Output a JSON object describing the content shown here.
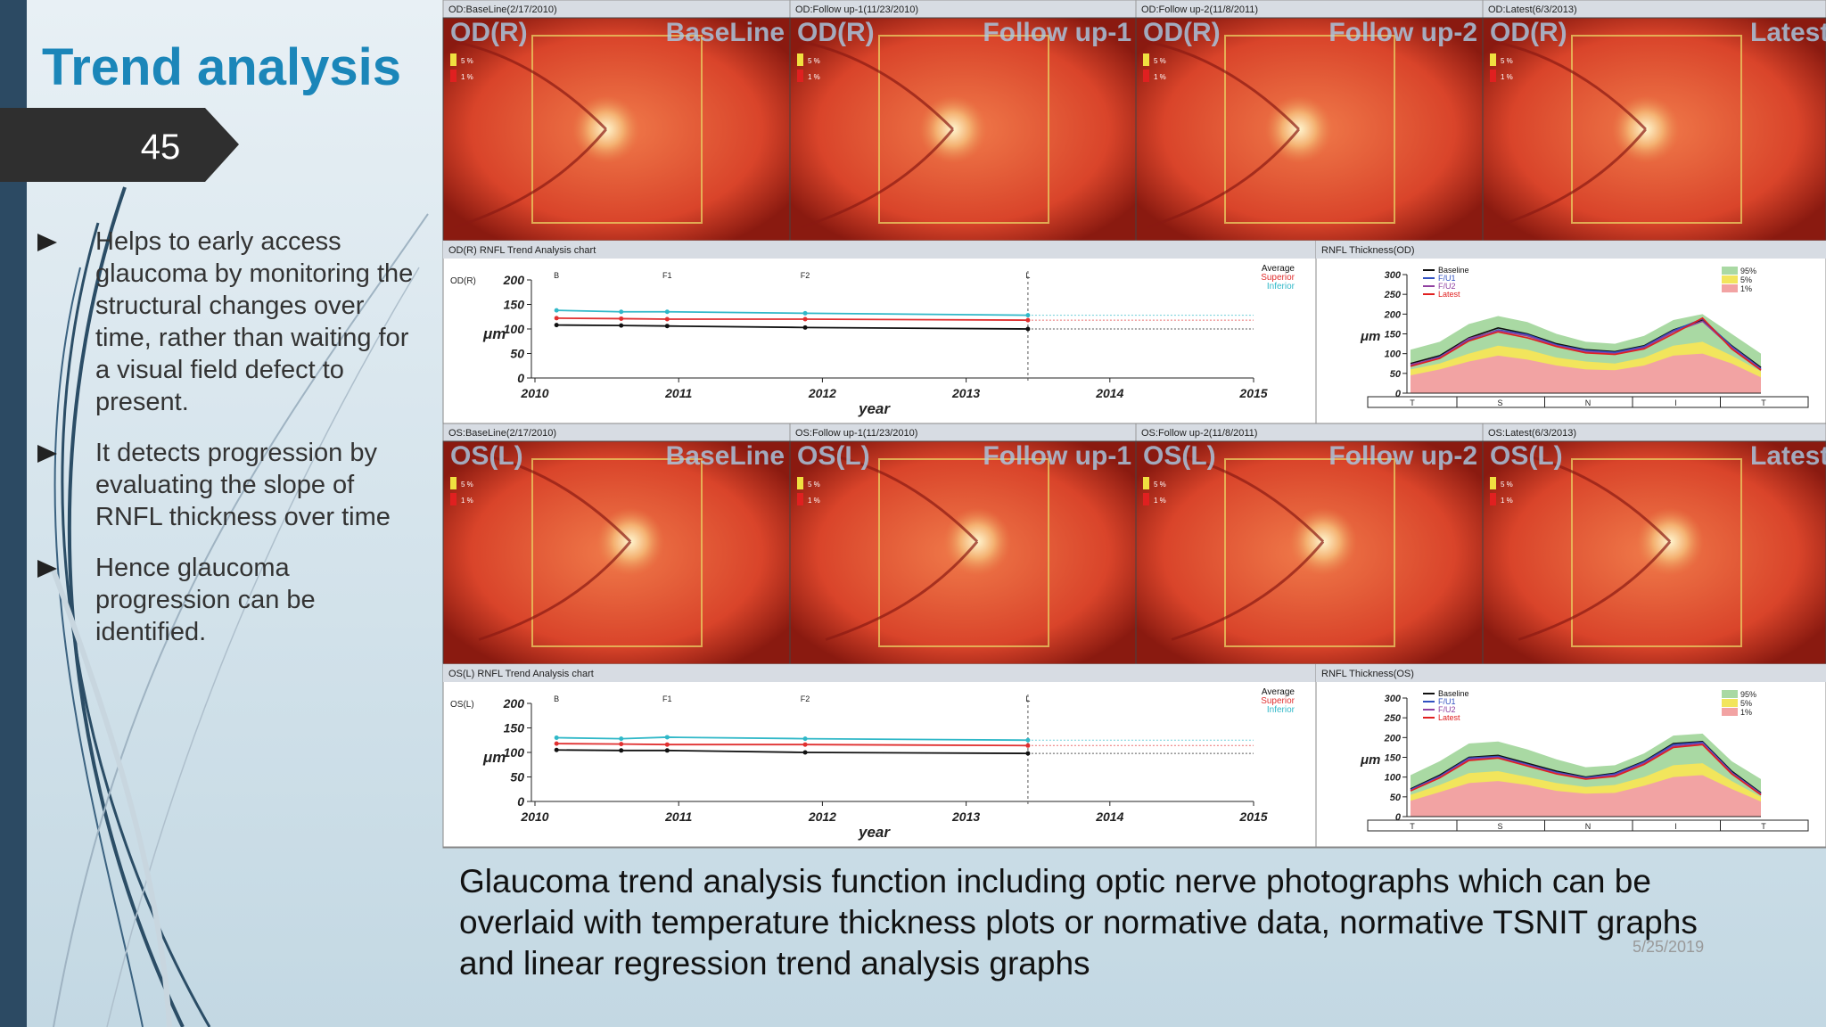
{
  "slide": {
    "title": "Trend analysis",
    "number": "45",
    "bullets": [
      [
        "Helps to early access",
        "glaucoma by monitoring  the",
        "structural changes over",
        "time, rather than waiting for",
        "a visual field defect to",
        "present."
      ],
      [
        "It detects progression by",
        "evaluating the slope of",
        "RNFL thickness over time"
      ],
      [
        "Hence glaucoma",
        "progression can be",
        "identified."
      ]
    ],
    "caption": [
      "Glaucoma trend analysis function including optic nerve photographs which can be",
      "overlaid with temperature thickness plots or normative data, normative TSNIT graphs",
      "and linear regression trend analysis graphs"
    ],
    "date": "5/25/2019"
  },
  "figure": {
    "photo_rows": [
      {
        "scale": [
          "5 %",
          "1 %"
        ],
        "panels": [
          {
            "header": "OD:BaseLine(2/17/2010)",
            "eye": "OD(R)",
            "stage": "BaseLine"
          },
          {
            "header": "OD:Follow up-1(11/23/2010)",
            "eye": "OD(R)",
            "stage": "Follow up-1"
          },
          {
            "header": "OD:Follow up-2(11/8/2011)",
            "eye": "OD(R)",
            "stage": "Follow up-2"
          },
          {
            "header": "OD:Latest(6/3/2013)",
            "eye": "OD(R)",
            "stage": "Latest"
          }
        ]
      },
      {
        "scale": [
          "5 %",
          "1 %"
        ],
        "panels": [
          {
            "header": "OS:BaseLine(2/17/2010)",
            "eye": "OS(L)",
            "stage": "BaseLine"
          },
          {
            "header": "OS:Follow up-1(11/23/2010)",
            "eye": "OS(L)",
            "stage": "Follow up-1"
          },
          {
            "header": "OS:Follow up-2(11/8/2011)",
            "eye": "OS(L)",
            "stage": "Follow up-2"
          },
          {
            "header": "OS:Latest(6/3/2013)",
            "eye": "OS(L)",
            "stage": "Latest"
          }
        ]
      }
    ],
    "trend_charts": [
      {
        "type": "line",
        "title": "OD(R) RNFL Trend Analysis chart",
        "eye": "OD(R)",
        "ylabel": "μm",
        "xlabel": "year",
        "xlim": [
          2010,
          2015
        ],
        "xticks": [
          2010,
          2011,
          2012,
          2013,
          2014,
          2015
        ],
        "ylim": [
          0,
          200
        ],
        "yticks": [
          0,
          50,
          100,
          150,
          200
        ],
        "markers": {
          "labels": [
            "B",
            "F1",
            "F2",
            "L"
          ],
          "x": [
            2010.15,
            2010.92,
            2011.88,
            2013.43
          ]
        },
        "x": [
          2010.15,
          2010.6,
          2010.92,
          2011.88,
          2013.43
        ],
        "series": [
          {
            "name": "Average",
            "color": "#111111",
            "values": [
              108,
              107,
              106,
              103,
              100
            ]
          },
          {
            "name": "Superior",
            "color": "#e03030",
            "values": [
              122,
              121,
              120,
              120,
              118
            ]
          },
          {
            "name": "Inferior",
            "color": "#30b8c8",
            "values": [
              138,
              135,
              135,
              132,
              128
            ]
          }
        ]
      },
      {
        "type": "line",
        "title": "OS(L) RNFL Trend Analysis chart",
        "eye": "OS(L)",
        "ylabel": "μm",
        "xlabel": "year",
        "xlim": [
          2010,
          2015
        ],
        "xticks": [
          2010,
          2011,
          2012,
          2013,
          2014,
          2015
        ],
        "ylim": [
          0,
          200
        ],
        "yticks": [
          0,
          50,
          100,
          150,
          200
        ],
        "markers": {
          "labels": [
            "B",
            "F1",
            "F2",
            "L"
          ],
          "x": [
            2010.15,
            2010.92,
            2011.88,
            2013.43
          ]
        },
        "x": [
          2010.15,
          2010.6,
          2010.92,
          2011.88,
          2013.43
        ],
        "series": [
          {
            "name": "Average",
            "color": "#111111",
            "values": [
              105,
              104,
              104,
              100,
              98
            ]
          },
          {
            "name": "Superior",
            "color": "#e03030",
            "values": [
              118,
              117,
              116,
              116,
              114
            ]
          },
          {
            "name": "Inferior",
            "color": "#30b8c8",
            "values": [
              130,
              128,
              131,
              128,
              125
            ]
          }
        ]
      }
    ],
    "tsnit_charts": [
      {
        "type": "area",
        "title": "RNFL Thickness(OD)",
        "ylabel": "μm",
        "ylim": [
          0,
          300
        ],
        "yticks": [
          0,
          50,
          100,
          150,
          200,
          250,
          300
        ],
        "sectors": [
          "T",
          "S",
          "N",
          "I",
          "T"
        ],
        "bands": [
          {
            "name": "95%",
            "color": "#a9d9a3",
            "values": [
              110,
              130,
              175,
              195,
              180,
              150,
              130,
              125,
              145,
              185,
              200,
              150,
              100
            ]
          },
          {
            "name": "5%",
            "color": "#f2e55c",
            "values": [
              60,
              75,
              100,
              120,
              110,
              90,
              80,
              75,
              90,
              120,
              130,
              95,
              55
            ]
          },
          {
            "name": "1%",
            "color": "#f2a3a3",
            "values": [
              45,
              60,
              80,
              95,
              85,
              70,
              60,
              58,
              70,
              95,
              100,
              75,
              40
            ]
          }
        ],
        "series": [
          {
            "name": "Baseline",
            "color": "#111111",
            "values": [
              75,
              95,
              140,
              165,
              150,
              125,
              110,
              105,
              120,
              160,
              185,
              120,
              65
            ]
          },
          {
            "name": "F/U1",
            "color": "#3050c0",
            "values": [
              70,
              92,
              135,
              160,
              148,
              122,
              108,
              103,
              118,
              158,
              188,
              118,
              62
            ]
          },
          {
            "name": "F/U2",
            "color": "#9040a0",
            "values": [
              72,
              90,
              138,
              158,
              145,
              120,
              105,
              100,
              115,
              155,
              182,
              115,
              60
            ]
          },
          {
            "name": "Latest",
            "color": "#e02020",
            "values": [
              68,
              88,
              132,
              155,
              140,
              118,
              102,
              98,
              112,
              150,
              190,
              112,
              58
            ]
          }
        ]
      },
      {
        "type": "area",
        "title": "RNFL Thickness(OS)",
        "ylabel": "μm",
        "ylim": [
          0,
          300
        ],
        "yticks": [
          0,
          50,
          100,
          150,
          200,
          250,
          300
        ],
        "sectors": [
          "T",
          "S",
          "N",
          "I",
          "T"
        ],
        "bands": [
          {
            "name": "95%",
            "color": "#a9d9a3",
            "values": [
              105,
              140,
              185,
              190,
              170,
              145,
              125,
              130,
              160,
              205,
              210,
              140,
              95
            ]
          },
          {
            "name": "5%",
            "color": "#f2e55c",
            "values": [
              55,
              80,
              110,
              115,
              100,
              85,
              75,
              80,
              100,
              130,
              135,
              90,
              50
            ]
          },
          {
            "name": "1%",
            "color": "#f2a3a3",
            "values": [
              40,
              62,
              85,
              90,
              80,
              65,
              58,
              60,
              78,
              100,
              105,
              70,
              38
            ]
          }
        ],
        "series": [
          {
            "name": "Baseline",
            "color": "#111111",
            "values": [
              70,
              105,
              150,
              155,
              135,
              115,
              100,
              110,
              140,
              185,
              190,
              115,
              60
            ]
          },
          {
            "name": "F/U1",
            "color": "#3050c0",
            "values": [
              68,
              102,
              148,
              152,
              132,
              112,
              98,
              108,
              138,
              182,
              188,
              112,
              58
            ]
          },
          {
            "name": "F/U2",
            "color": "#9040a0",
            "values": [
              66,
              100,
              145,
              150,
              130,
              110,
              96,
              105,
              135,
              178,
              185,
              110,
              57
            ]
          },
          {
            "name": "Latest",
            "color": "#e02020",
            "values": [
              65,
              98,
              142,
              148,
              128,
              108,
              95,
              102,
              132,
              175,
              182,
              108,
              55
            ]
          }
        ]
      }
    ]
  }
}
